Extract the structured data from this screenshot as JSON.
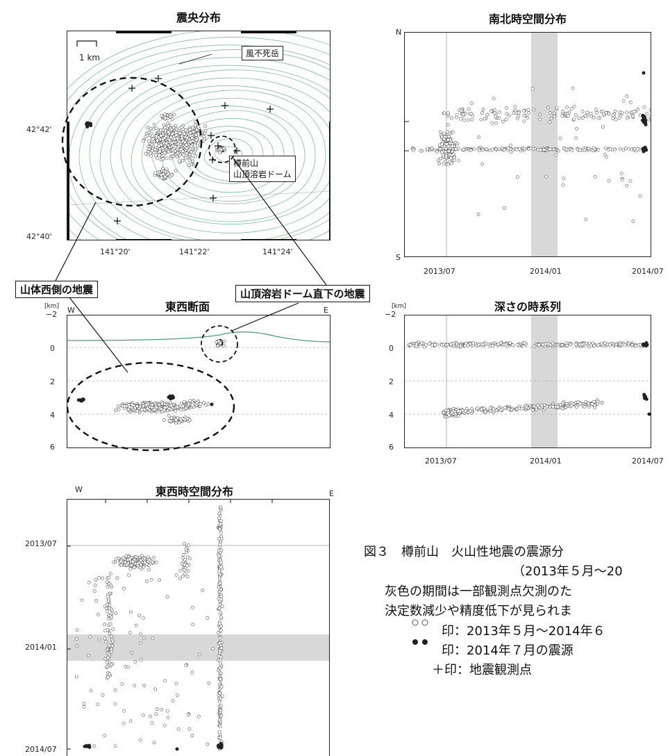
{
  "epicenter": {
    "title": "震央分布",
    "scale": "1 km",
    "label_peak": "風不死岳",
    "label_dome_1": "樽前山",
    "label_dome_2": "山頂溶岩ドーム",
    "lat_ticks": [
      "42°42'",
      "42°40'"
    ],
    "lon_ticks": [
      "141°20'",
      "141°22'",
      "141°24'"
    ]
  },
  "callouts": {
    "west": "山体西側の地震",
    "dome": "山頂溶岩ドーム直下の地震"
  },
  "ns_time": {
    "title": "南北時空間分布",
    "n": "N",
    "s": "S",
    "x_ticks": [
      "2013/07",
      "2014/01",
      "2014/07"
    ]
  },
  "ew_section": {
    "title": "東西断面",
    "unit": "[km]",
    "w": "W",
    "e": "E",
    "y_ticks": [
      "−2",
      "0",
      "2",
      "4",
      "6"
    ]
  },
  "depth_time": {
    "title": "深さの時系列",
    "unit": "[km]",
    "y_ticks": [
      "−2",
      "0",
      "2",
      "4",
      "6"
    ],
    "x_ticks": [
      "2013/07",
      "2014/01",
      "2014/07"
    ]
  },
  "ew_time": {
    "title": "東西時空間分布",
    "w": "W",
    "e": "E",
    "y_ticks": [
      "2013/07",
      "2014/01",
      "2014/07"
    ]
  },
  "caption": {
    "line1": "図３　樽前山　火山性地震の震源分",
    "line2": "（2013年５月～20",
    "line3": "灰色の期間は一部観測点欠測のた",
    "line4": "決定数減少や精度低下が見られま",
    "line5": "印：2013年５月～2014年６",
    "line6": "印：2014年７月の震源",
    "line7": "＋印：地震観測点"
  },
  "colors": {
    "contour": "#4f9e74",
    "gray_period": "#d8d8d8",
    "open_marker": "#555555",
    "filled_marker": "#222222"
  }
}
